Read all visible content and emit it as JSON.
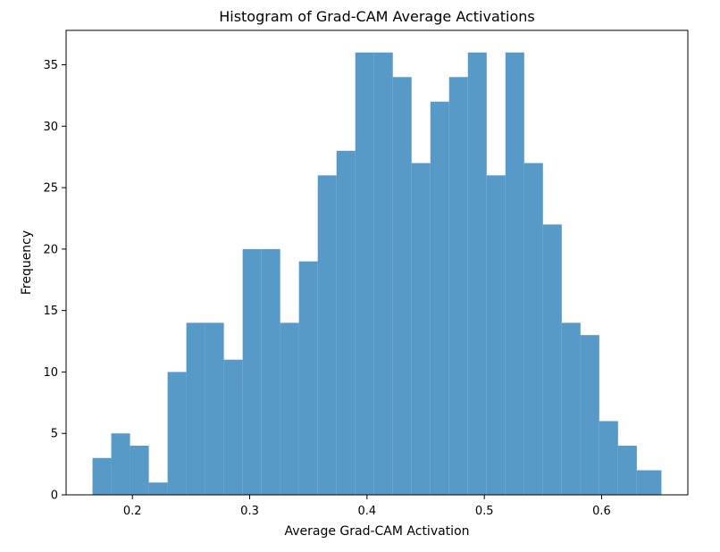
{
  "chart_data": {
    "type": "bar",
    "title": "Histogram of Grad-CAM Average Activations",
    "xlabel": "Average Grad-CAM Activation",
    "ylabel": "Frequency",
    "xlim": [
      0.1435,
      0.6735
    ],
    "ylim": [
      0,
      37.8
    ],
    "x_ticks": [
      0.2,
      0.3,
      0.4,
      0.5,
      0.6
    ],
    "x_tick_labels": [
      "0.2",
      "0.3",
      "0.4",
      "0.5",
      "0.6"
    ],
    "y_ticks": [
      0,
      5,
      10,
      15,
      20,
      25,
      30,
      35
    ],
    "y_tick_labels": [
      "0",
      "5",
      "10",
      "15",
      "20",
      "25",
      "30",
      "35"
    ],
    "bin_edges": [
      0.166,
      0.182,
      0.198,
      0.214,
      0.23,
      0.246,
      0.262,
      0.278,
      0.294,
      0.31,
      0.326,
      0.342,
      0.358,
      0.374,
      0.39,
      0.406,
      0.422,
      0.438,
      0.454,
      0.47,
      0.486,
      0.502,
      0.518,
      0.534,
      0.55,
      0.566,
      0.582,
      0.598,
      0.614,
      0.63,
      0.651
    ],
    "values": [
      3,
      5,
      4,
      1,
      10,
      14,
      14,
      11,
      20,
      20,
      14,
      19,
      26,
      28,
      36,
      36,
      34,
      27,
      32,
      34,
      36,
      26,
      36,
      27,
      22,
      14,
      13,
      6,
      4,
      2
    ],
    "bar_color": "#5799c7",
    "grid": false
  }
}
